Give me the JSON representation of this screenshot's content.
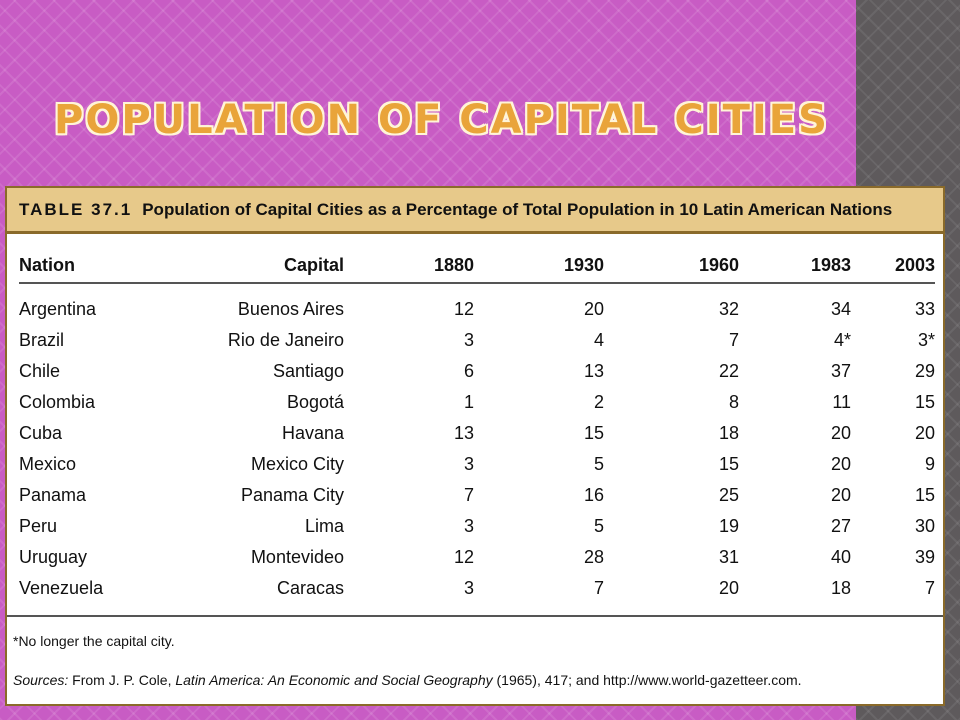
{
  "slide": {
    "title": "Population of Capital Cities"
  },
  "table": {
    "label": "TABLE 37.1",
    "caption": "Population of Capital Cities as a Percentage of Total Population in 10 Latin American Nations",
    "headers": [
      "Nation",
      "Capital",
      "1880",
      "1930",
      "1960",
      "1983",
      "2003"
    ],
    "rows": [
      [
        "Argentina",
        "Buenos Aires",
        "12",
        "20",
        "32",
        "34",
        "33"
      ],
      [
        "Brazil",
        "Rio de Janeiro",
        "3",
        "4",
        "7",
        "4*",
        "3*"
      ],
      [
        "Chile",
        "Santiago",
        "6",
        "13",
        "22",
        "37",
        "29"
      ],
      [
        "Colombia",
        "Bogotá",
        "1",
        "2",
        "8",
        "11",
        "15"
      ],
      [
        "Cuba",
        "Havana",
        "13",
        "15",
        "18",
        "20",
        "20"
      ],
      [
        "Mexico",
        "Mexico City",
        "3",
        "5",
        "15",
        "20",
        "9"
      ],
      [
        "Panama",
        "Panama City",
        "7",
        "16",
        "25",
        "20",
        "15"
      ],
      [
        "Peru",
        "Lima",
        "3",
        "5",
        "19",
        "27",
        "30"
      ],
      [
        "Uruguay",
        "Montevideo",
        "12",
        "28",
        "31",
        "40",
        "39"
      ],
      [
        "Venezuela",
        "Caracas",
        "3",
        "7",
        "20",
        "18",
        "7"
      ]
    ],
    "footnote": "*No longer the capital city.",
    "sources": {
      "label": "Sources:",
      "prefix": "From J. P. Cole,",
      "book_title": "Latin America: An Economic and Social Geography",
      "suffix": "(1965), 417; and http://www.world-gazetteer.com."
    }
  },
  "colors": {
    "background": "#c85cc4",
    "side_stripe": "#5e5a5c",
    "title": "#e9a43a",
    "caption_bar": "#e7c98a",
    "table_border": "#8a6a2a"
  }
}
